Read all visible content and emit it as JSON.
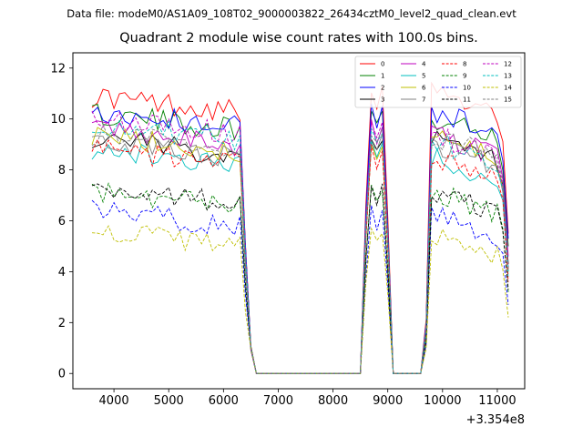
{
  "figure": {
    "suptitle": "Data file: modeM0/AS1A09_108T02_9000003822_26434cztM0_level2_quad_clean.evt",
    "title": "Quadrant 2 module wise count rates with 100.0s bins."
  },
  "chart_data": {
    "type": "line",
    "title": "Quadrant 2 module wise count rates with 100.0s bins.",
    "xlabel": "",
    "ylabel": "",
    "x_offset_label": "+3.354e8",
    "xlim": [
      3250,
      11500
    ],
    "ylim": [
      -0.6,
      12.6
    ],
    "xticks": [
      4000,
      5000,
      6000,
      7000,
      8000,
      9000,
      10000,
      11000
    ],
    "yticks": [
      0,
      2,
      4,
      6,
      8,
      10,
      12
    ],
    "grid": false,
    "legend_position": "top-right",
    "legend_ncol": 4,
    "segment_a": {
      "t_start": 3600,
      "t_end": 6300
    },
    "segment_b": {
      "t_start": 9750,
      "t_end": 11000
    },
    "peak_times": [
      8600,
      8700,
      8800,
      8900,
      9000
    ],
    "series": [
      {
        "name": "0",
        "color": "#ff0000",
        "dash": "solid",
        "level_a": 10.5,
        "level_b": 10.6,
        "peak": 11.2,
        "end": 5.5
      },
      {
        "name": "1",
        "color": "#008000",
        "dash": "solid",
        "level_a": 9.8,
        "level_b": 9.5,
        "peak": 10.5,
        "end": 5.0
      },
      {
        "name": "2",
        "color": "#0000ff",
        "dash": "solid",
        "level_a": 9.9,
        "level_b": 9.8,
        "peak": 10.4,
        "end": 5.3
      },
      {
        "name": "3",
        "color": "#000000",
        "dash": "solid",
        "level_a": 8.8,
        "level_b": 8.6,
        "peak": 9.3,
        "end": 4.3
      },
      {
        "name": "4",
        "color": "#bf00bf",
        "dash": "solid",
        "level_a": 9.1,
        "level_b": 8.9,
        "peak": 9.8,
        "end": 4.6
      },
      {
        "name": "5",
        "color": "#00bfbf",
        "dash": "solid",
        "level_a": 8.4,
        "level_b": 7.9,
        "peak": 9.1,
        "end": 3.8
      },
      {
        "name": "6",
        "color": "#bfbf00",
        "dash": "solid",
        "level_a": 8.9,
        "level_b": 8.7,
        "peak": 9.0,
        "end": 4.0
      },
      {
        "name": "7",
        "color": "#808080",
        "dash": "solid",
        "level_a": 8.7,
        "level_b": 8.5,
        "peak": 9.2,
        "end": 4.1
      },
      {
        "name": "8",
        "color": "#ff0000",
        "dash": "dashed",
        "level_a": 8.4,
        "level_b": 8.0,
        "peak": 8.8,
        "end": 3.6
      },
      {
        "name": "9",
        "color": "#008000",
        "dash": "dashed",
        "level_a": 6.8,
        "level_b": 6.6,
        "peak": 7.2,
        "end": 3.2
      },
      {
        "name": "10",
        "color": "#0000ff",
        "dash": "dashed",
        "level_a": 6.0,
        "level_b": 5.7,
        "peak": 6.4,
        "end": 2.7
      },
      {
        "name": "11",
        "color": "#000000",
        "dash": "dashed",
        "level_a": 6.9,
        "level_b": 6.6,
        "peak": 7.4,
        "end": 3.3
      },
      {
        "name": "12",
        "color": "#bf00bf",
        "dash": "dashed",
        "level_a": 9.6,
        "level_b": 8.8,
        "peak": 10.0,
        "end": 4.2
      },
      {
        "name": "13",
        "color": "#00bfbf",
        "dash": "dashed",
        "level_a": 9.4,
        "level_b": 8.6,
        "peak": 9.6,
        "end": 4.0
      },
      {
        "name": "14",
        "color": "#bfbf00",
        "dash": "dashed",
        "level_a": 5.2,
        "level_b": 4.9,
        "peak": 5.7,
        "end": 2.2
      },
      {
        "name": "15",
        "color": "#808080",
        "dash": "dashed",
        "level_a": 9.0,
        "level_b": 8.8,
        "peak": 9.5,
        "end": 4.1
      }
    ]
  }
}
